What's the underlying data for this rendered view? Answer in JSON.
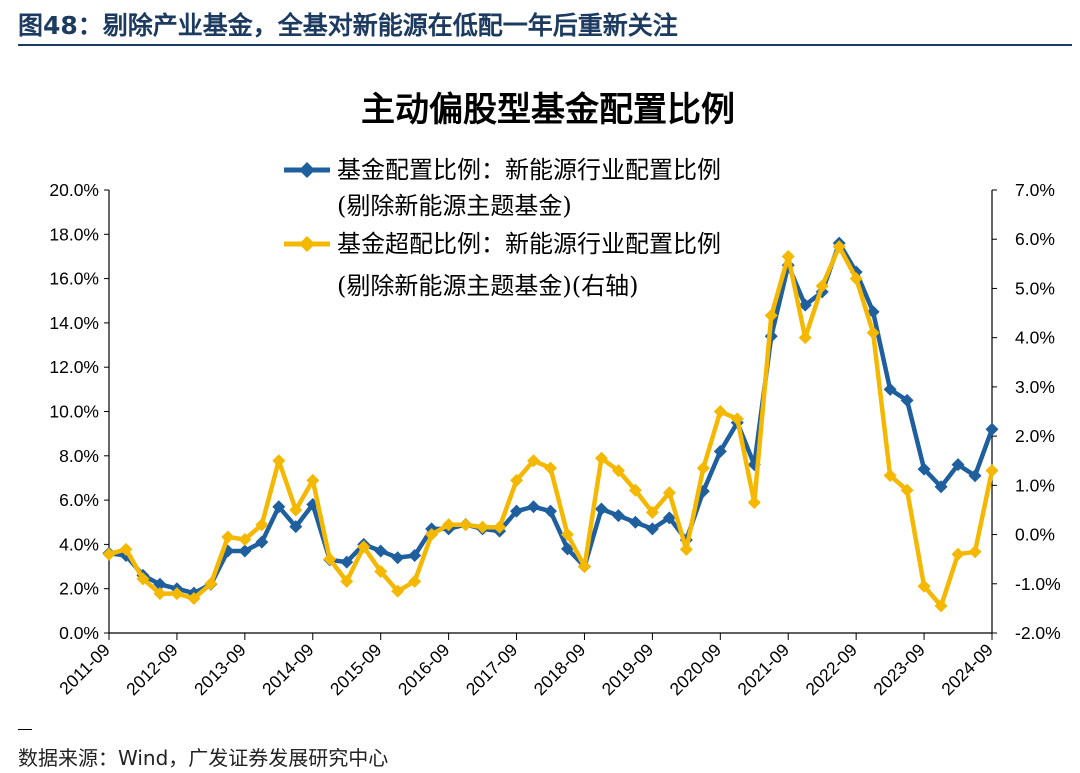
{
  "header": {
    "figure_title": "图48：剔除产业基金，全基对新能源在低配一年后重新关注"
  },
  "footer": {
    "source": "数据来源：Wind，广发证券发展研究中心"
  },
  "chart_data": {
    "type": "line",
    "title": "主动偏股型基金配置比例",
    "legend_placement": "top-left",
    "grid": false,
    "x_tick_labels": [
      "2011-09",
      "2012-09",
      "2013-09",
      "2014-09",
      "2015-09",
      "2016-09",
      "2017-09",
      "2018-09",
      "2019-09",
      "2020-09",
      "2021-09",
      "2022-09",
      "2023-09",
      "2024-09"
    ],
    "left_axis": {
      "ticks": [
        "0.0%",
        "2.0%",
        "4.0%",
        "6.0%",
        "8.0%",
        "10.0%",
        "12.0%",
        "14.0%",
        "16.0%",
        "18.0%",
        "20.0%"
      ],
      "ylim": [
        0,
        20
      ]
    },
    "right_axis": {
      "ticks": [
        "-2.0%",
        "-1.0%",
        "0.0%",
        "1.0%",
        "2.0%",
        "3.0%",
        "4.0%",
        "5.0%",
        "6.0%",
        "7.0%"
      ],
      "ylim": [
        -2,
        7
      ]
    },
    "colors": {
      "series1": "#1f5f9e",
      "series2": "#f5b800"
    },
    "series": [
      {
        "name_line1": "基金配置比例：新能源行业配置比例",
        "name_line2": "(剔除新能源主题基金)",
        "axis": "left",
        "x": [
          "2011-09",
          "2011-12",
          "2012-03",
          "2012-06",
          "2012-09",
          "2012-12",
          "2013-03",
          "2013-06",
          "2013-09",
          "2013-12",
          "2014-03",
          "2014-06",
          "2014-09",
          "2014-12",
          "2015-03",
          "2015-06",
          "2015-09",
          "2015-12",
          "2016-03",
          "2016-06",
          "2016-09",
          "2016-12",
          "2017-03",
          "2017-06",
          "2017-09",
          "2017-12",
          "2018-03",
          "2018-06",
          "2018-09",
          "2018-12",
          "2019-03",
          "2019-06",
          "2019-09",
          "2019-12",
          "2020-03",
          "2020-06",
          "2020-09",
          "2020-12",
          "2021-03",
          "2021-06",
          "2021-09",
          "2021-12",
          "2022-03",
          "2022-06",
          "2022-09",
          "2022-12",
          "2023-03",
          "2023-06",
          "2023-09",
          "2023-12",
          "2024-03",
          "2024-06",
          "2024-09"
        ],
        "values": [
          3.6,
          3.5,
          2.6,
          2.2,
          2.0,
          1.8,
          2.2,
          3.7,
          3.7,
          4.1,
          5.7,
          4.8,
          5.8,
          3.3,
          3.2,
          4.0,
          3.7,
          3.4,
          3.5,
          4.7,
          4.7,
          4.9,
          4.7,
          4.6,
          5.5,
          5.7,
          5.5,
          3.8,
          3.0,
          5.6,
          5.3,
          5.0,
          4.7,
          5.2,
          4.2,
          6.4,
          8.2,
          9.5,
          7.6,
          13.4,
          16.6,
          14.8,
          15.4,
          17.6,
          16.3,
          14.5,
          11.0,
          10.5,
          7.4,
          6.6,
          7.6,
          7.1,
          9.2
        ]
      },
      {
        "name_line1": "基金超配比例：新能源行业配置比例",
        "name_line2": "(剔除新能源主题基金)(右轴)",
        "axis": "right",
        "x": [
          "2011-09",
          "2011-12",
          "2012-03",
          "2012-06",
          "2012-09",
          "2012-12",
          "2013-03",
          "2013-06",
          "2013-09",
          "2013-12",
          "2014-03",
          "2014-06",
          "2014-09",
          "2014-12",
          "2015-03",
          "2015-06",
          "2015-09",
          "2015-12",
          "2016-03",
          "2016-06",
          "2016-09",
          "2016-12",
          "2017-03",
          "2017-06",
          "2017-09",
          "2017-12",
          "2018-03",
          "2018-06",
          "2018-09",
          "2018-12",
          "2019-03",
          "2019-06",
          "2019-09",
          "2019-12",
          "2020-03",
          "2020-06",
          "2020-09",
          "2020-12",
          "2021-03",
          "2021-06",
          "2021-09",
          "2021-12",
          "2022-03",
          "2022-06",
          "2022-09",
          "2022-12",
          "2023-03",
          "2023-06",
          "2023-09",
          "2023-12",
          "2024-03",
          "2024-06",
          "2024-09"
        ],
        "values": [
          -0.4,
          -0.3,
          -0.9,
          -1.2,
          -1.2,
          -1.3,
          -1.0,
          -0.05,
          -0.1,
          0.2,
          1.5,
          0.5,
          1.1,
          -0.5,
          -0.95,
          -0.25,
          -0.75,
          -1.15,
          -0.95,
          0.0,
          0.2,
          0.2,
          0.15,
          0.15,
          1.1,
          1.5,
          1.35,
          0.0,
          -0.65,
          1.55,
          1.3,
          0.9,
          0.45,
          0.85,
          -0.3,
          1.35,
          2.5,
          2.35,
          0.65,
          4.45,
          5.65,
          4.0,
          5.05,
          5.85,
          5.2,
          4.1,
          1.2,
          0.9,
          -1.05,
          -1.45,
          -0.4,
          -0.35,
          1.3
        ]
      }
    ]
  }
}
